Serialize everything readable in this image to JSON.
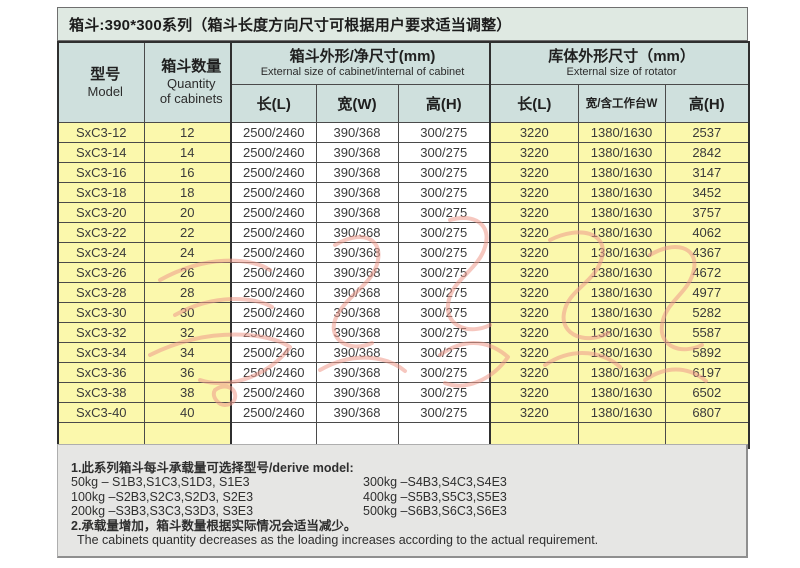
{
  "title": "箱斗:390*300系列（箱斗长度方向尺寸可根据用户要求适当调整）",
  "table": {
    "model_header": {
      "zh": "型号",
      "en": "Model"
    },
    "quantity_header": {
      "zh": "箱斗数量",
      "en1": "Quantity",
      "en2": "of cabinets"
    },
    "cabinet_group": {
      "zh": "箱斗外形/净尺寸(mm)",
      "en": "External size of cabinet/internal of cabinet"
    },
    "rotator_group": {
      "zh": "库体外形尺寸（mm）",
      "en": "External size of rotator"
    },
    "sub_headers": [
      "长(L)",
      "宽(W)",
      "高(H)",
      "长(L)",
      "宽/含工作台W",
      "高(H)"
    ],
    "rows": [
      [
        "SxC3-12",
        "12",
        "2500/2460",
        "390/368",
        "300/275",
        "3220",
        "1380/1630",
        "2537"
      ],
      [
        "SxC3-14",
        "14",
        "2500/2460",
        "390/368",
        "300/275",
        "3220",
        "1380/1630",
        "2842"
      ],
      [
        "SxC3-16",
        "16",
        "2500/2460",
        "390/368",
        "300/275",
        "3220",
        "1380/1630",
        "3147"
      ],
      [
        "SxC3-18",
        "18",
        "2500/2460",
        "390/368",
        "300/275",
        "3220",
        "1380/1630",
        "3452"
      ],
      [
        "SxC3-20",
        "20",
        "2500/2460",
        "390/368",
        "300/275",
        "3220",
        "1380/1630",
        "3757"
      ],
      [
        "SxC3-22",
        "22",
        "2500/2460",
        "390/368",
        "300/275",
        "3220",
        "1380/1630",
        "4062"
      ],
      [
        "SxC3-24",
        "24",
        "2500/2460",
        "390/368",
        "300/275",
        "3220",
        "1380/1630",
        "4367"
      ],
      [
        "SxC3-26",
        "26",
        "2500/2460",
        "390/368",
        "300/275",
        "3220",
        "1380/1630",
        "4672"
      ],
      [
        "SxC3-28",
        "28",
        "2500/2460",
        "390/368",
        "300/275",
        "3220",
        "1380/1630",
        "4977"
      ],
      [
        "SxC3-30",
        "30",
        "2500/2460",
        "390/368",
        "300/275",
        "3220",
        "1380/1630",
        "5282"
      ],
      [
        "SxC3-32",
        "32",
        "2500/2460",
        "390/368",
        "300/275",
        "3220",
        "1380/1630",
        "5587"
      ],
      [
        "SxC3-34",
        "34",
        "2500/2460",
        "390/368",
        "300/275",
        "3220",
        "1380/1630",
        "5892"
      ],
      [
        "SxC3-36",
        "36",
        "2500/2460",
        "390/368",
        "300/275",
        "3220",
        "1380/1630",
        "6197"
      ],
      [
        "SxC3-38",
        "38",
        "2500/2460",
        "390/368",
        "300/275",
        "3220",
        "1380/1630",
        "6502"
      ],
      [
        "SxC3-40",
        "40",
        "2500/2460",
        "390/368",
        "300/275",
        "3220",
        "1380/1630",
        "6807"
      ]
    ]
  },
  "notes": {
    "line1": "1.此系列箱斗每斗承载量可选择型号/derive model:",
    "left_items": [
      "50kg – S1B3,S1C3,S1D3, S1E3",
      "100kg –S2B3,S2C3,S2D3, S2E3",
      "200kg –S3B3,S3C3,S3D3, S3E3"
    ],
    "right_items": [
      "300kg –S4B3,S4C3,S4E3",
      "400kg –S5B3,S5C3,S5E3",
      "500kg –S6B3,S6C3,S6E3"
    ],
    "line2_zh": "2.承载量增加，箱斗数量根据实际情况会适当减少。",
    "line2_en": "The cabinets quantity decreases as the loading increases according to the actual requirement."
  },
  "colors": {
    "title_bg": "#dfe9e2",
    "header_bg": "#cfe0dd",
    "highlight_yellow": "#fbf8ac",
    "notes_bg": "#e6e6e4",
    "border": "#4a4a4a",
    "watermark_red": "#ef9a8c"
  }
}
